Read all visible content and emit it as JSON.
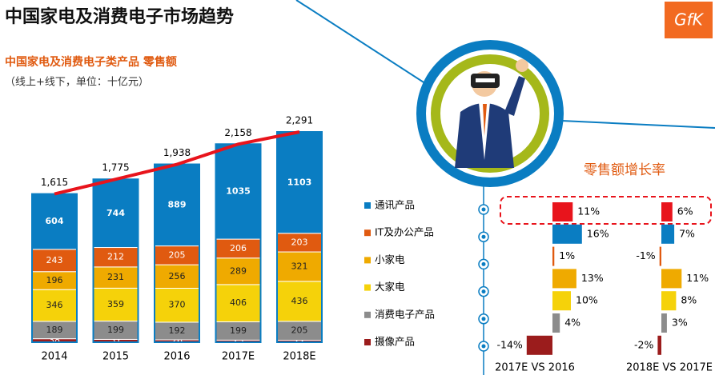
{
  "title": "中国家电及消费电子市场趋势",
  "logo": "GfK",
  "chart_data": [
    {
      "type": "stacked-bar",
      "subtitle": "中国家电及消费电子类产品 零售额",
      "unit": "（线上+线下，单位：十亿元）",
      "categories": [
        "2014",
        "2015",
        "2016",
        "2017E",
        "2018E"
      ],
      "series": [
        {
          "name": "通讯产品",
          "color": "#0a7dc2",
          "values": [
            604,
            744,
            889,
            1035,
            1103
          ]
        },
        {
          "name": "IT及办公产品",
          "color": "#e05a10",
          "values": [
            243,
            212,
            205,
            206,
            203
          ]
        },
        {
          "name": "小家电",
          "color": "#efaa00",
          "values": [
            196,
            231,
            256,
            289,
            321
          ]
        },
        {
          "name": "大家电",
          "color": "#f5d20a",
          "values": [
            346,
            359,
            370,
            406,
            436
          ]
        },
        {
          "name": "消费电子产品",
          "color": "#8c8c8c",
          "values": [
            189,
            199,
            192,
            199,
            205
          ]
        },
        {
          "name": "摄像产品",
          "color": "#9b1c1c",
          "values": [
            38,
            31,
            26,
            23,
            22
          ]
        }
      ],
      "line": {
        "color": "#e8141c",
        "values": [
          1615,
          1775,
          1938,
          2158,
          2291
        ],
        "value_labels": [
          "1,615",
          "1,775",
          "1,938",
          "2,158",
          "2,291"
        ]
      }
    },
    {
      "type": "horizontal-bar",
      "title": "零售额增长率",
      "colors": [
        "#e8141c",
        "#0a7dc2",
        "#e05a10",
        "#efaa00",
        "#f5d20a",
        "#8c8c8c",
        "#9b1c1c"
      ],
      "series": [
        {
          "name": "2017E VS  2016",
          "values": [
            11,
            16,
            1,
            13,
            10,
            4,
            -14
          ],
          "value_labels": [
            "11%",
            "16%",
            "1%",
            "13%",
            "10%",
            "4%",
            "-14%"
          ]
        },
        {
          "name": "2018E VS 2017E",
          "values": [
            6,
            7,
            -1,
            11,
            8,
            3,
            -2
          ],
          "value_labels": [
            "6%",
            "7%",
            "-1%",
            "11%",
            "8%",
            "3%",
            "-2%"
          ]
        }
      ]
    }
  ]
}
